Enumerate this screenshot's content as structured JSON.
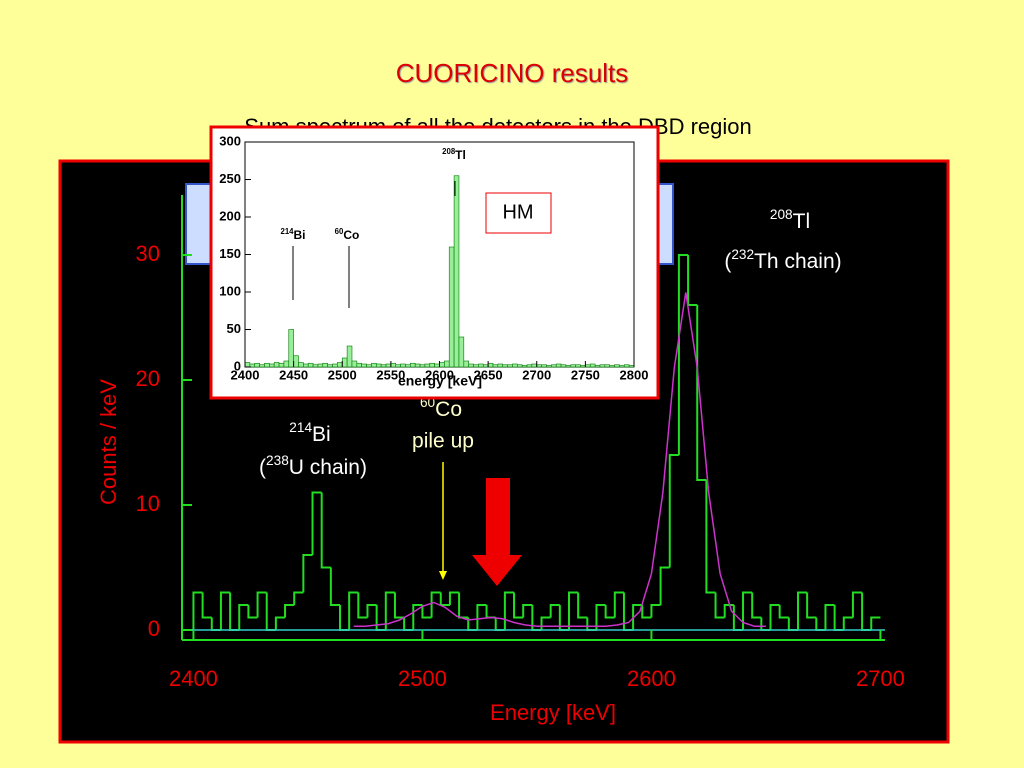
{
  "chart_data": [
    {
      "type": "histogram",
      "title": "CUORICINO results",
      "subtitle": "Sum spectrum of all the detectors in the DBD region",
      "x_label": "Energy [keV]",
      "y_label": "Counts / keV",
      "bins": [
        2396,
        2400,
        2404,
        2408,
        2412,
        2416,
        2420,
        2424,
        2428,
        2432,
        2436,
        2440,
        2444,
        2448,
        2452,
        2456,
        2460,
        2464,
        2468,
        2472,
        2476,
        2480,
        2484,
        2488,
        2492,
        2496,
        2500,
        2504,
        2508,
        2512,
        2516,
        2520,
        2524,
        2528,
        2532,
        2536,
        2540,
        2544,
        2548,
        2552,
        2556,
        2560,
        2564,
        2568,
        2572,
        2576,
        2580,
        2584,
        2588,
        2592,
        2596,
        2600,
        2604,
        2608,
        2612,
        2616,
        2620,
        2624,
        2628,
        2632,
        2636,
        2640,
        2644,
        2648,
        2652,
        2656,
        2660,
        2664,
        2668,
        2672,
        2676,
        2680,
        2684,
        2688,
        2692,
        2696,
        2700
      ],
      "values": [
        0,
        3,
        1,
        0,
        3,
        0,
        2,
        1,
        3,
        0,
        1,
        2,
        3,
        6,
        11,
        5,
        2,
        0,
        3,
        1,
        2,
        0,
        3,
        1,
        0,
        2,
        1,
        3,
        2,
        3,
        1,
        0,
        2,
        1,
        0,
        3,
        1,
        2,
        0,
        1,
        2,
        0,
        3,
        1,
        0,
        2,
        1,
        3,
        0,
        2,
        1,
        2,
        5,
        14,
        30,
        26,
        12,
        3,
        1,
        2,
        0,
        3,
        1,
        0,
        2,
        1,
        0,
        3,
        1,
        0,
        2,
        0,
        1,
        3,
        0,
        1
      ],
      "color": "#22dd22",
      "fit": {
        "color": "#cc33cc",
        "x": [
          2470,
          2475,
          2480,
          2485,
          2490,
          2495,
          2500,
          2505,
          2510,
          2515,
          2520,
          2525,
          2530,
          2535,
          2540,
          2545,
          2550,
          2555,
          2560,
          2565,
          2570,
          2575,
          2580,
          2585,
          2590,
          2595,
          2600,
          2605,
          2610,
          2615,
          2620,
          2625,
          2630,
          2635,
          2640,
          2645,
          2650
        ],
        "values": [
          0.3,
          0.3,
          0.4,
          0.5,
          0.8,
          1.3,
          1.9,
          2.2,
          1.8,
          1.1,
          0.8,
          0.9,
          1.0,
          0.9,
          0.6,
          0.4,
          0.3,
          0.3,
          0.3,
          0.3,
          0.3,
          0.3,
          0.3,
          0.4,
          0.6,
          1.5,
          4.5,
          11,
          21,
          27,
          21,
          11,
          4.5,
          1.5,
          0.6,
          0.3,
          0.3
        ]
      },
      "xlim": [
        2395,
        2702
      ],
      "ylim": [
        -0.8,
        34.8
      ],
      "xticks": [
        2400,
        2500,
        2600,
        2700
      ],
      "yticks": [
        0,
        10,
        20,
        30
      ],
      "annotations": [
        {
          "mass": "208",
          "element": "Tl",
          "open": "(",
          "chain_mass": "232",
          "chain": "Th chain)"
        },
        {
          "mass": "214",
          "element": "Bi",
          "open": "(",
          "chain_mass": "238",
          "chain": "U chain)"
        },
        {
          "mass": "60",
          "element": "Co",
          "note": "pile up"
        }
      ]
    },
    {
      "type": "histogram",
      "x_label": "energy [keV]",
      "tag": "HM",
      "bins": [
        2400,
        2405,
        2410,
        2415,
        2420,
        2425,
        2430,
        2435,
        2440,
        2445,
        2450,
        2455,
        2460,
        2465,
        2470,
        2475,
        2480,
        2485,
        2490,
        2495,
        2500,
        2505,
        2510,
        2515,
        2520,
        2525,
        2530,
        2535,
        2540,
        2545,
        2550,
        2555,
        2560,
        2565,
        2570,
        2575,
        2580,
        2585,
        2590,
        2595,
        2600,
        2605,
        2610,
        2615,
        2620,
        2625,
        2630,
        2635,
        2640,
        2645,
        2650,
        2655,
        2660,
        2665,
        2670,
        2675,
        2680,
        2685,
        2690,
        2695,
        2700,
        2705,
        2710,
        2715,
        2720,
        2725,
        2730,
        2735,
        2740,
        2745,
        2750,
        2755,
        2760,
        2765,
        2770,
        2775,
        2780,
        2785,
        2790,
        2795,
        2800
      ],
      "values": [
        6,
        4,
        5,
        3,
        5,
        4,
        6,
        5,
        8,
        50,
        15,
        6,
        4,
        5,
        3,
        4,
        5,
        3,
        4,
        6,
        12,
        28,
        8,
        5,
        4,
        3,
        5,
        4,
        3,
        4,
        5,
        3,
        4,
        3,
        5,
        4,
        3,
        4,
        5,
        4,
        6,
        8,
        160,
        255,
        40,
        8,
        4,
        3,
        4,
        3,
        5,
        3,
        4,
        3,
        3,
        4,
        3,
        2,
        3,
        4,
        3,
        3,
        2,
        3,
        4,
        3,
        2,
        3,
        3,
        2,
        3,
        4,
        2,
        3,
        3,
        2,
        3,
        2,
        3,
        2
      ],
      "color": "#99ee99",
      "xlim": [
        2400,
        2800
      ],
      "ylim": [
        0,
        300
      ],
      "xticks": [
        2400,
        2450,
        2500,
        2550,
        2600,
        2650,
        2700,
        2750,
        2800
      ],
      "yticks": [
        0,
        50,
        100,
        150,
        200,
        250,
        300
      ],
      "labels": [
        {
          "mass": "214",
          "element": "Bi"
        },
        {
          "mass": "60",
          "element": "Co"
        },
        {
          "mass": "208",
          "element": "Tl"
        }
      ]
    }
  ]
}
